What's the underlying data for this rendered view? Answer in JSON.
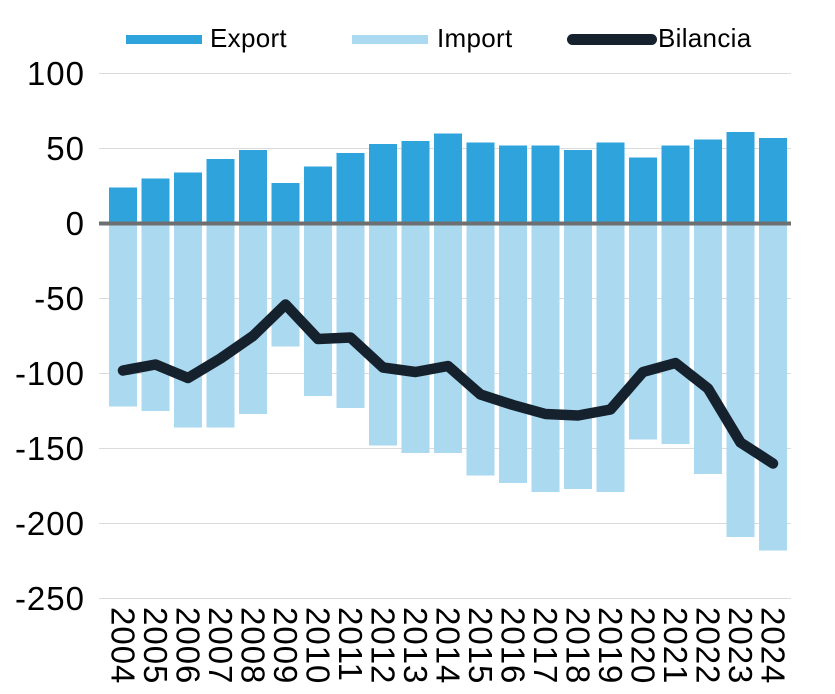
{
  "chart_data": {
    "type": "bar",
    "subtype": "bar-line-combo",
    "title": "",
    "xlabel": "",
    "ylabel": "",
    "categories": [
      "2004",
      "2005",
      "2006",
      "2007",
      "2008",
      "2009",
      "2010",
      "2011",
      "2012",
      "2013",
      "2014",
      "2015",
      "2016",
      "2017",
      "2018",
      "2019",
      "2020",
      "2021",
      "2022",
      "2023",
      "2024"
    ],
    "series": [
      {
        "name": "Export",
        "type": "bar",
        "color": "#2FA3DB",
        "values": [
          24,
          30,
          34,
          43,
          49,
          27,
          38,
          47,
          53,
          55,
          60,
          54,
          52,
          52,
          49,
          54,
          44,
          52,
          56,
          61,
          57
        ]
      },
      {
        "name": "Import",
        "type": "bar",
        "color": "#ABD9F0",
        "values": [
          -122,
          -125,
          -136,
          -136,
          -127,
          -82,
          -115,
          -123,
          -148,
          -153,
          -153,
          -168,
          -173,
          -179,
          -177,
          -179,
          -144,
          -147,
          -167,
          -209,
          -218
        ]
      },
      {
        "name": "Bilancia",
        "type": "line",
        "color": "#15222E",
        "values": [
          -98,
          -94,
          -103,
          -90,
          -75,
          -54,
          -77,
          -76,
          -96,
          -99,
          -95,
          -114,
          -121,
          -127,
          -128,
          -124,
          -99,
          -93,
          -110,
          -146,
          -160
        ]
      }
    ],
    "ylim": [
      -250,
      100
    ],
    "yticks": [
      100,
      50,
      0,
      -50,
      -100,
      -150,
      -200,
      -250
    ],
    "grid": true,
    "zero_line": true,
    "legend_position": "top",
    "x_tick_rotation_deg": 90,
    "colors": {
      "axis_text": "#000000",
      "gridline": "#DBDBDB",
      "zero_line": "#6E6F71",
      "background": "#FFFFFF"
    }
  }
}
